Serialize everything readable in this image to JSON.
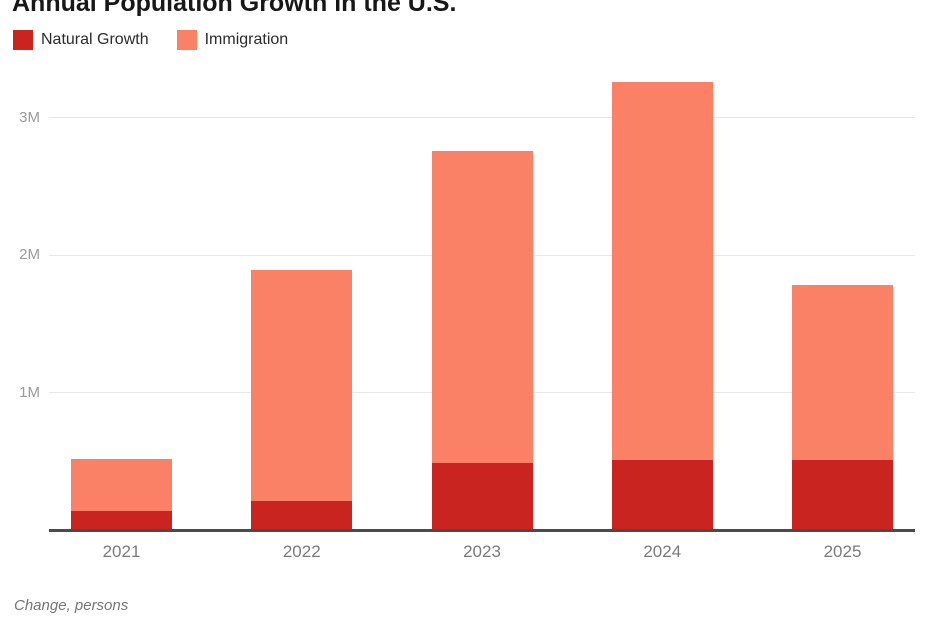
{
  "title": "Annual Population Growth in the U.S.",
  "footer_note": "Change, persons",
  "legend": [
    {
      "label": "Natural Growth",
      "color": "#c9241f"
    },
    {
      "label": "Immigration",
      "color": "#fa8066"
    }
  ],
  "colors": {
    "natural_growth": "#c9241f",
    "immigration": "#fa8066",
    "axis_line": "#4a4a4a",
    "gridline": "#e7e7e7",
    "y_tick_label": "#9b9b9b",
    "x_tick_label": "#7a7a7a",
    "note_text": "#757575",
    "title_text": "#171717",
    "background": "#ffffff"
  },
  "chart_data": {
    "type": "bar",
    "stacked": true,
    "title": "Annual Population Growth in the U.S.",
    "note": "Change, persons",
    "xlabel": "",
    "ylabel": "Change, persons",
    "categories": [
      "2021",
      "2022",
      "2023",
      "2024",
      "2025"
    ],
    "series": [
      {
        "name": "Natural Growth",
        "color": "#c9241f",
        "values": [
          140000,
          210000,
          490000,
          510000,
          510000
        ]
      },
      {
        "name": "Immigration",
        "color": "#fa8066",
        "values": [
          380000,
          1680000,
          2270000,
          2750000,
          1270000
        ]
      }
    ],
    "totals": [
      520000,
      1890000,
      2760000,
      3260000,
      1780000
    ],
    "y_ticks": [
      {
        "value": 1000000,
        "label": "1M"
      },
      {
        "value": 2000000,
        "label": "2M"
      },
      {
        "value": 3000000,
        "label": "3M"
      }
    ],
    "ylim": [
      0,
      3450000
    ],
    "grid": true,
    "legend_position": "top-left"
  }
}
